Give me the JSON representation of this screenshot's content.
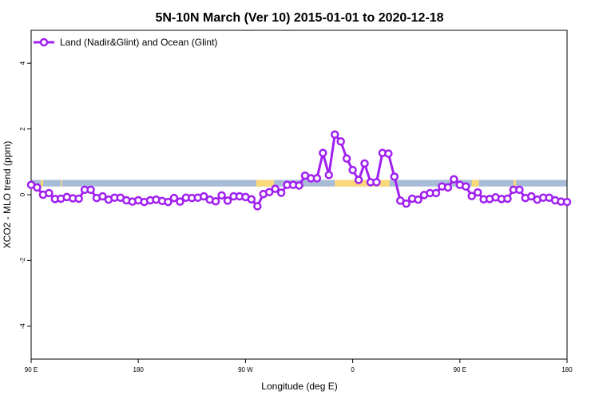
{
  "chart_data": {
    "type": "line",
    "title": "5N-10N March (Ver 10)   2015-01-01 to 2020-12-18",
    "xlabel": "Longitude (deg E)",
    "ylabel": "XCO2 - MLO trend (ppm)",
    "x_axis": {
      "ticks": [
        {
          "value": 90,
          "label": "90 E"
        },
        {
          "value": 180,
          "label": "180"
        },
        {
          "value": 270,
          "label": "90 W"
        },
        {
          "value": 360,
          "label": "0"
        },
        {
          "value": 450,
          "label": "90 E"
        },
        {
          "value": 540,
          "label": "180"
        }
      ],
      "range": [
        90,
        540
      ]
    },
    "y_axis": {
      "ticks": [
        {
          "value": -4,
          "label": "-4"
        },
        {
          "value": -2,
          "label": "-2"
        },
        {
          "value": 0,
          "label": "0"
        },
        {
          "value": 2,
          "label": "2"
        },
        {
          "value": 4,
          "label": "4"
        }
      ],
      "range": [
        -5,
        5
      ]
    },
    "grid": false,
    "legend": {
      "position": "top-left",
      "entries": [
        "Land (Nadir&Glint) and Ocean (Glint)"
      ]
    },
    "colors": {
      "series": "#a020f0",
      "ocean_band": "#a8bcd8",
      "land_band": "#fad97a"
    },
    "land_mask_band": {
      "y_range": [
        0.25,
        0.45
      ],
      "land_segments": [
        [
          98,
          100
        ],
        [
          115,
          116
        ],
        [
          279,
          294
        ],
        [
          345,
          391
        ],
        [
          460,
          466
        ],
        [
          495,
          497
        ]
      ]
    },
    "series": [
      {
        "name": "Land (Nadir&Glint) and Ocean (Glint)",
        "x": [
          90,
          95,
          100,
          105,
          110,
          115,
          120,
          125,
          130,
          135,
          140,
          145,
          150,
          155,
          160,
          165,
          170,
          175,
          180,
          185,
          190,
          195,
          200,
          205,
          210,
          215,
          220,
          225,
          230,
          235,
          240,
          245,
          250,
          255,
          260,
          265,
          270,
          275,
          280,
          285,
          290,
          295,
          300,
          305,
          310,
          315,
          320,
          325,
          330,
          335,
          340,
          345,
          350,
          355,
          360,
          365,
          370,
          375,
          380,
          385,
          390,
          395,
          400,
          405,
          410,
          415,
          420,
          425,
          430,
          435,
          440,
          445,
          450,
          455,
          460,
          465,
          470,
          475,
          480,
          485,
          490,
          495,
          500,
          505,
          510,
          515,
          520,
          525,
          530,
          535,
          540
        ],
        "values": [
          0.3,
          0.22,
          0.0,
          0.05,
          -0.13,
          -0.12,
          -0.07,
          -0.11,
          -0.12,
          0.15,
          0.15,
          -0.1,
          -0.05,
          -0.15,
          -0.09,
          -0.09,
          -0.17,
          -0.21,
          -0.17,
          -0.22,
          -0.17,
          -0.15,
          -0.19,
          -0.22,
          -0.1,
          -0.21,
          -0.09,
          -0.1,
          -0.09,
          -0.05,
          -0.15,
          -0.2,
          -0.02,
          -0.18,
          -0.05,
          -0.05,
          -0.07,
          -0.14,
          -0.35,
          0.02,
          0.08,
          0.18,
          0.06,
          0.3,
          0.3,
          0.28,
          0.58,
          0.5,
          0.5,
          1.27,
          0.6,
          1.83,
          1.62,
          1.1,
          0.75,
          0.45,
          0.95,
          0.38,
          0.38,
          1.27,
          1.25,
          0.55,
          -0.18,
          -0.27,
          -0.12,
          -0.15,
          -0.01,
          0.05,
          0.05,
          0.25,
          0.22,
          0.47,
          0.3,
          0.25,
          -0.04,
          0.07,
          -0.14,
          -0.13,
          -0.08,
          -0.13,
          -0.12,
          0.15,
          0.15,
          -0.1,
          -0.05,
          -0.15,
          -0.09,
          -0.09,
          -0.17,
          -0.21,
          -0.22
        ]
      }
    ]
  }
}
